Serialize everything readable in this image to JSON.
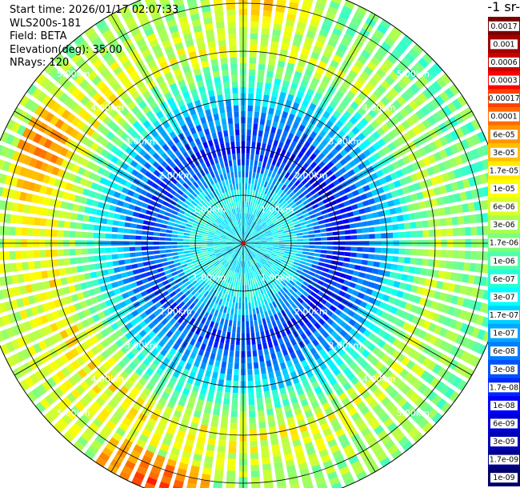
{
  "header": {
    "start_time": "Start time: 2026/01/17 02:07:33",
    "instrument": "WLS200s-181",
    "field": "Field: BETA",
    "elevation": "Elevation(deg): 35.00",
    "nrays": "NRays: 120"
  },
  "colorbar": {
    "unit_label": "-1 sr-",
    "ticks": [
      "0.0017",
      "0.001",
      "0.0006",
      "0.0003",
      "0.00017",
      "0.0001",
      "6e-05",
      "3e-05",
      "1.7e-05",
      "1e-05",
      "6e-06",
      "3e-06",
      "1.7e-06",
      "1e-06",
      "6e-07",
      "3e-07",
      "1.7e-07",
      "1e-07",
      "6e-08",
      "3e-08",
      "1.7e-08",
      "1e-08",
      "6e-09",
      "3e-09",
      "1.7e-09",
      "1e-09"
    ],
    "colors": [
      "#7a0000",
      "#a00000",
      "#c80000",
      "#ff0000",
      "#ff4000",
      "#ff6a00",
      "#ff9500",
      "#ffbf00",
      "#ffea00",
      "#ffff00",
      "#d8ff26",
      "#a9ff4e",
      "#7dff7a",
      "#4effa9",
      "#26ffd6",
      "#00ffff",
      "#00d2ff",
      "#00a8ff",
      "#007dff",
      "#0052ff",
      "#0026ff",
      "#0000ff",
      "#0000d2",
      "#0000b4",
      "#00008c",
      "#00006a"
    ]
  },
  "chart_data": {
    "type": "heatmap",
    "projection": "polar (PPI)",
    "nrays": 120,
    "range_rings_km": [
      1,
      2,
      3,
      4,
      5
    ],
    "range_labels": [
      "1.00km",
      "2.00km",
      "3.00km",
      "4.00km",
      "5.00km"
    ],
    "max_range_km": 5.5,
    "azimuth_spokes_deg": [
      0,
      30,
      60,
      90,
      120,
      150,
      180,
      210,
      240,
      270,
      300,
      330
    ],
    "color_scale": "log",
    "value_range": [
      1e-09,
      0.0017
    ],
    "pattern": {
      "ring_level_by_range_km": [
        {
          "range_km": 0.5,
          "level": 0.36
        },
        {
          "range_km": 1.0,
          "level": 0.4
        },
        {
          "range_km": 2.0,
          "level": 0.15
        },
        {
          "range_km": 3.0,
          "level": 0.35
        },
        {
          "range_km": 4.0,
          "level": 0.6
        },
        {
          "range_km": 5.0,
          "level": 0.52
        }
      ],
      "warm_patches": [
        {
          "azimuth_deg": 295,
          "range_km": 4.6,
          "level": 0.78
        },
        {
          "azimuth_deg": 200,
          "range_km": 5.3,
          "level": 0.82
        },
        {
          "azimuth_deg": 5,
          "range_km": 5.0,
          "level": 0.7
        }
      ]
    }
  }
}
